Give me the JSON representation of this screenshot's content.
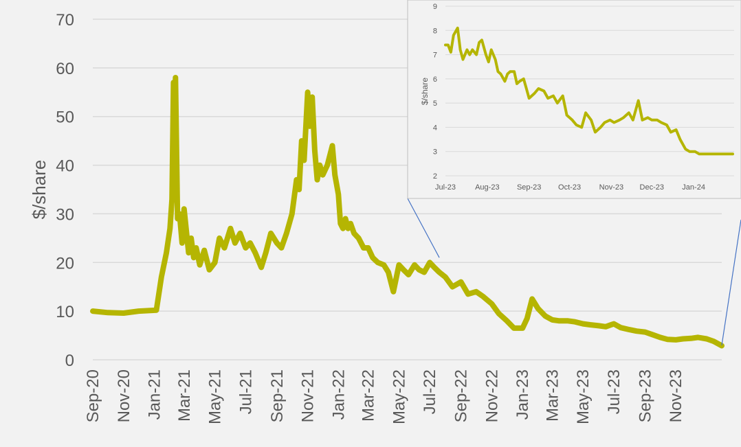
{
  "colors": {
    "series": "#b5b502",
    "grid": "#d9d9d9",
    "axis_text": "#595959",
    "connector": "#4472c4",
    "background": "#f2f2f2"
  },
  "chart_data": [
    {
      "type": "line",
      "role": "main",
      "ylabel": "$/share",
      "ylim": [
        0,
        70
      ],
      "y_ticks": [
        0,
        10,
        20,
        30,
        40,
        50,
        60,
        70
      ],
      "x_tick_labels": [
        "Sep-20",
        "Nov-20",
        "Jan-21",
        "Mar-21",
        "May-21",
        "Jul-21",
        "Sep-21",
        "Nov-21",
        "Jan-22",
        "Mar-22",
        "May-22",
        "Jul-22",
        "Sep-22",
        "Nov-22",
        "Jan-23",
        "Mar-23",
        "May-23",
        "Jul-23",
        "Sep-23",
        "Nov-23"
      ],
      "x_range": [
        "2020-09-01",
        "2024-01-31"
      ],
      "grid": true,
      "series": [
        {
          "x": [
            "2020-09-01",
            "2020-10-01",
            "2020-11-01",
            "2020-12-01",
            "2020-12-20",
            "2021-01-05",
            "2021-01-15",
            "2021-01-25",
            "2021-02-01",
            "2021-02-05",
            "2021-02-08",
            "2021-02-10",
            "2021-02-12",
            "2021-02-16",
            "2021-02-20",
            "2021-02-25",
            "2021-03-01",
            "2021-03-10",
            "2021-03-15",
            "2021-03-20",
            "2021-03-25",
            "2021-04-01",
            "2021-04-10",
            "2021-04-20",
            "2021-05-01",
            "2021-05-10",
            "2021-05-20",
            "2021-06-01",
            "2021-06-10",
            "2021-06-20",
            "2021-07-01",
            "2021-07-10",
            "2021-07-20",
            "2021-08-01",
            "2021-08-10",
            "2021-08-20",
            "2021-09-01",
            "2021-09-10",
            "2021-09-20",
            "2021-10-01",
            "2021-10-10",
            "2021-10-15",
            "2021-10-20",
            "2021-10-25",
            "2021-11-01",
            "2021-11-05",
            "2021-11-10",
            "2021-11-15",
            "2021-11-20",
            "2021-11-25",
            "2021-12-01",
            "2021-12-10",
            "2021-12-20",
            "2021-12-25",
            "2022-01-01",
            "2022-01-05",
            "2022-01-10",
            "2022-01-15",
            "2022-01-20",
            "2022-01-25",
            "2022-02-01",
            "2022-02-10",
            "2022-02-20",
            "2022-03-01",
            "2022-03-10",
            "2022-03-20",
            "2022-04-01",
            "2022-04-10",
            "2022-04-20",
            "2022-05-01",
            "2022-05-10",
            "2022-05-20",
            "2022-06-01",
            "2022-06-10",
            "2022-06-20",
            "2022-07-01",
            "2022-07-10",
            "2022-07-20",
            "2022-08-01",
            "2022-08-15",
            "2022-09-01",
            "2022-09-15",
            "2022-10-01",
            "2022-10-15",
            "2022-11-01",
            "2022-11-15",
            "2022-12-01",
            "2022-12-15",
            "2023-01-01",
            "2023-01-10",
            "2023-01-20",
            "2023-02-01",
            "2023-02-15",
            "2023-03-01",
            "2023-03-15",
            "2023-04-01",
            "2023-04-15",
            "2023-05-01",
            "2023-05-15",
            "2023-06-01",
            "2023-06-15",
            "2023-07-01",
            "2023-07-15",
            "2023-08-01",
            "2023-08-15",
            "2023-09-01",
            "2023-09-15",
            "2023-10-01",
            "2023-10-15",
            "2023-11-01",
            "2023-11-15",
            "2023-12-01",
            "2023-12-15",
            "2024-01-01",
            "2024-01-15",
            "2024-01-31"
          ],
          "y": [
            10,
            9.7,
            9.6,
            10,
            10.1,
            10.2,
            17,
            22,
            27,
            33,
            57,
            35,
            58,
            29,
            30,
            24,
            31,
            22,
            25,
            21,
            23,
            19.5,
            22.5,
            18.5,
            20,
            25,
            23,
            27,
            24,
            26,
            23,
            24,
            22,
            19,
            22,
            26,
            24,
            23,
            26,
            30,
            37,
            35,
            45,
            41,
            55,
            48,
            54,
            43,
            37,
            40,
            38,
            40,
            44,
            38,
            34,
            28,
            27,
            29,
            27,
            28,
            26,
            25,
            23,
            23,
            21,
            20,
            19.5,
            18,
            14,
            19.5,
            18.5,
            17.5,
            19.5,
            18.5,
            18,
            20,
            19,
            18,
            17,
            15,
            16,
            13.5,
            14,
            13,
            11.5,
            9.5,
            8,
            6.5,
            6.5,
            8.5,
            12.5,
            10.5,
            9,
            8.2,
            8,
            8,
            7.8,
            7.4,
            7.2,
            7,
            6.8,
            7.4,
            6.6,
            6.2,
            5.9,
            5.7,
            5.2,
            4.6,
            4.2,
            4.1,
            4.3,
            4.4,
            4.6,
            4.3,
            3.8,
            2.9
          ]
        }
      ]
    },
    {
      "type": "line",
      "role": "inset",
      "ylabel": "$/share",
      "ylim": [
        2,
        9
      ],
      "y_ticks": [
        2,
        3,
        4,
        5,
        6,
        7,
        8,
        9
      ],
      "x_tick_labels": [
        "Jul-23",
        "Aug-23",
        "Sep-23",
        "Oct-23",
        "Nov-23",
        "Dec-23",
        "Jan-24"
      ],
      "x_range": [
        "2023-07-01",
        "2024-01-31"
      ],
      "grid": true,
      "series": [
        {
          "x": [
            "2023-07-01",
            "2023-07-03",
            "2023-07-05",
            "2023-07-07",
            "2023-07-10",
            "2023-07-12",
            "2023-07-14",
            "2023-07-17",
            "2023-07-19",
            "2023-07-21",
            "2023-07-24",
            "2023-07-26",
            "2023-07-28",
            "2023-07-31",
            "2023-08-02",
            "2023-08-04",
            "2023-08-07",
            "2023-08-09",
            "2023-08-11",
            "2023-08-14",
            "2023-08-16",
            "2023-08-18",
            "2023-08-21",
            "2023-08-23",
            "2023-08-25",
            "2023-08-28",
            "2023-08-30",
            "2023-09-01",
            "2023-09-05",
            "2023-09-08",
            "2023-09-12",
            "2023-09-15",
            "2023-09-19",
            "2023-09-22",
            "2023-09-26",
            "2023-09-29",
            "2023-10-03",
            "2023-10-06",
            "2023-10-10",
            "2023-10-13",
            "2023-10-17",
            "2023-10-20",
            "2023-10-24",
            "2023-10-27",
            "2023-10-31",
            "2023-11-03",
            "2023-11-07",
            "2023-11-10",
            "2023-11-14",
            "2023-11-17",
            "2023-11-21",
            "2023-11-24",
            "2023-11-28",
            "2023-12-01",
            "2023-12-05",
            "2023-12-08",
            "2023-12-12",
            "2023-12-15",
            "2023-12-19",
            "2023-12-22",
            "2023-12-26",
            "2023-12-29",
            "2024-01-02",
            "2024-01-05",
            "2024-01-09",
            "2024-01-12",
            "2024-01-16",
            "2024-01-19",
            "2024-01-23",
            "2024-01-26",
            "2024-01-30"
          ],
          "y": [
            7.4,
            7.4,
            7.1,
            7.8,
            8.1,
            7.2,
            6.8,
            7.2,
            7.0,
            7.2,
            7.0,
            7.5,
            7.6,
            7.0,
            6.7,
            7.2,
            6.8,
            6.3,
            6.2,
            5.9,
            6.2,
            6.3,
            6.3,
            5.8,
            5.9,
            6.0,
            5.6,
            5.2,
            5.4,
            5.6,
            5.5,
            5.2,
            5.3,
            5.0,
            5.3,
            4.5,
            4.3,
            4.1,
            4.0,
            4.6,
            4.3,
            3.8,
            4.0,
            4.2,
            4.3,
            4.2,
            4.3,
            4.4,
            4.6,
            4.3,
            5.1,
            4.3,
            4.4,
            4.3,
            4.3,
            4.2,
            4.1,
            3.8,
            3.9,
            3.5,
            3.1,
            3.0,
            3.0,
            2.9,
            2.9,
            2.9,
            2.9,
            2.9,
            2.9,
            2.9,
            2.9
          ]
        }
      ]
    }
  ]
}
